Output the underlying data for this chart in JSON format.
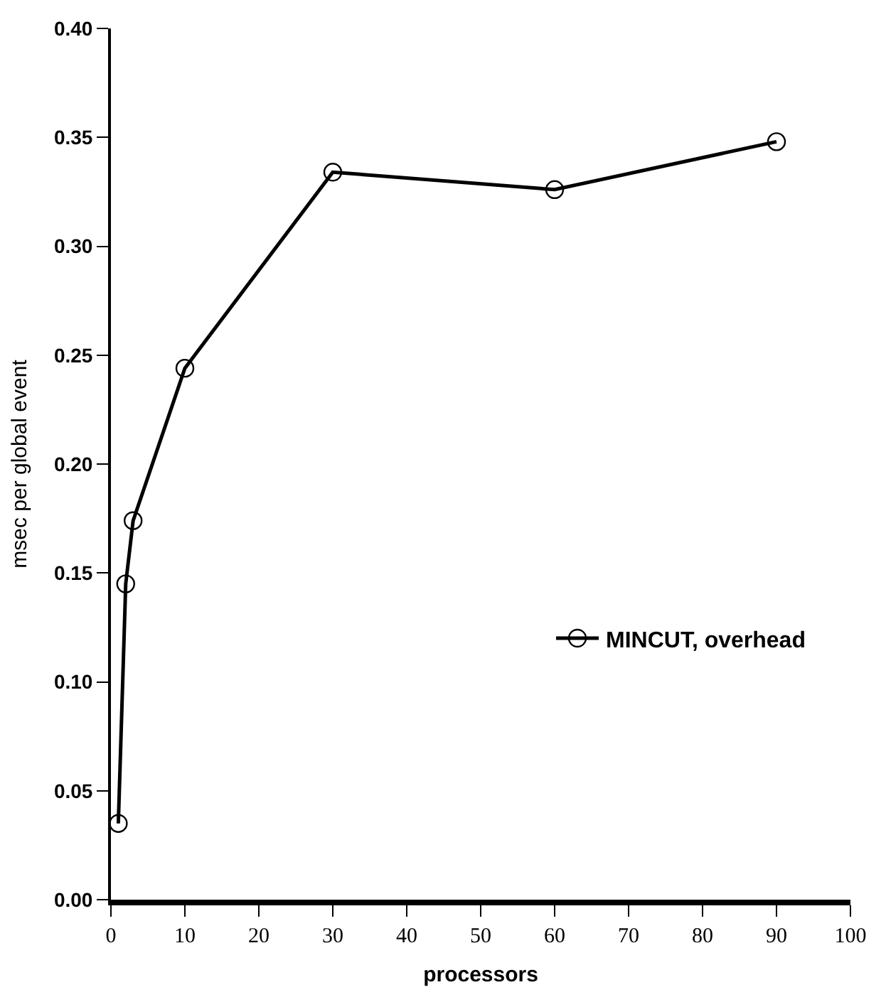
{
  "chart_data": {
    "type": "line",
    "xlabel": "processors",
    "ylabel": "msec per global event",
    "x": [
      1,
      2,
      3,
      10,
      30,
      60,
      90
    ],
    "series": [
      {
        "name": "MINCUT, overhead",
        "color": "#000000",
        "values": [
          0.035,
          0.145,
          0.174,
          0.244,
          0.334,
          0.326,
          0.348
        ]
      }
    ],
    "xlim": [
      0,
      100
    ],
    "xticks": [
      0,
      10,
      20,
      30,
      40,
      50,
      60,
      70,
      80,
      90,
      100
    ],
    "ylim": [
      0,
      0.4
    ],
    "yticks": [
      {
        "value": 0,
        "label": "0.00"
      },
      0.05,
      {
        "value": 0.1,
        "label": "0.10"
      },
      0.15,
      {
        "value": 0.2,
        "label": "0.20"
      },
      0.25,
      {
        "value": 0.3,
        "label": "0.30"
      },
      0.35,
      {
        "value": 0.4,
        "label": "0.40"
      }
    ],
    "marker": "circle",
    "line_style": "solid",
    "grid": false,
    "legend": "right"
  }
}
